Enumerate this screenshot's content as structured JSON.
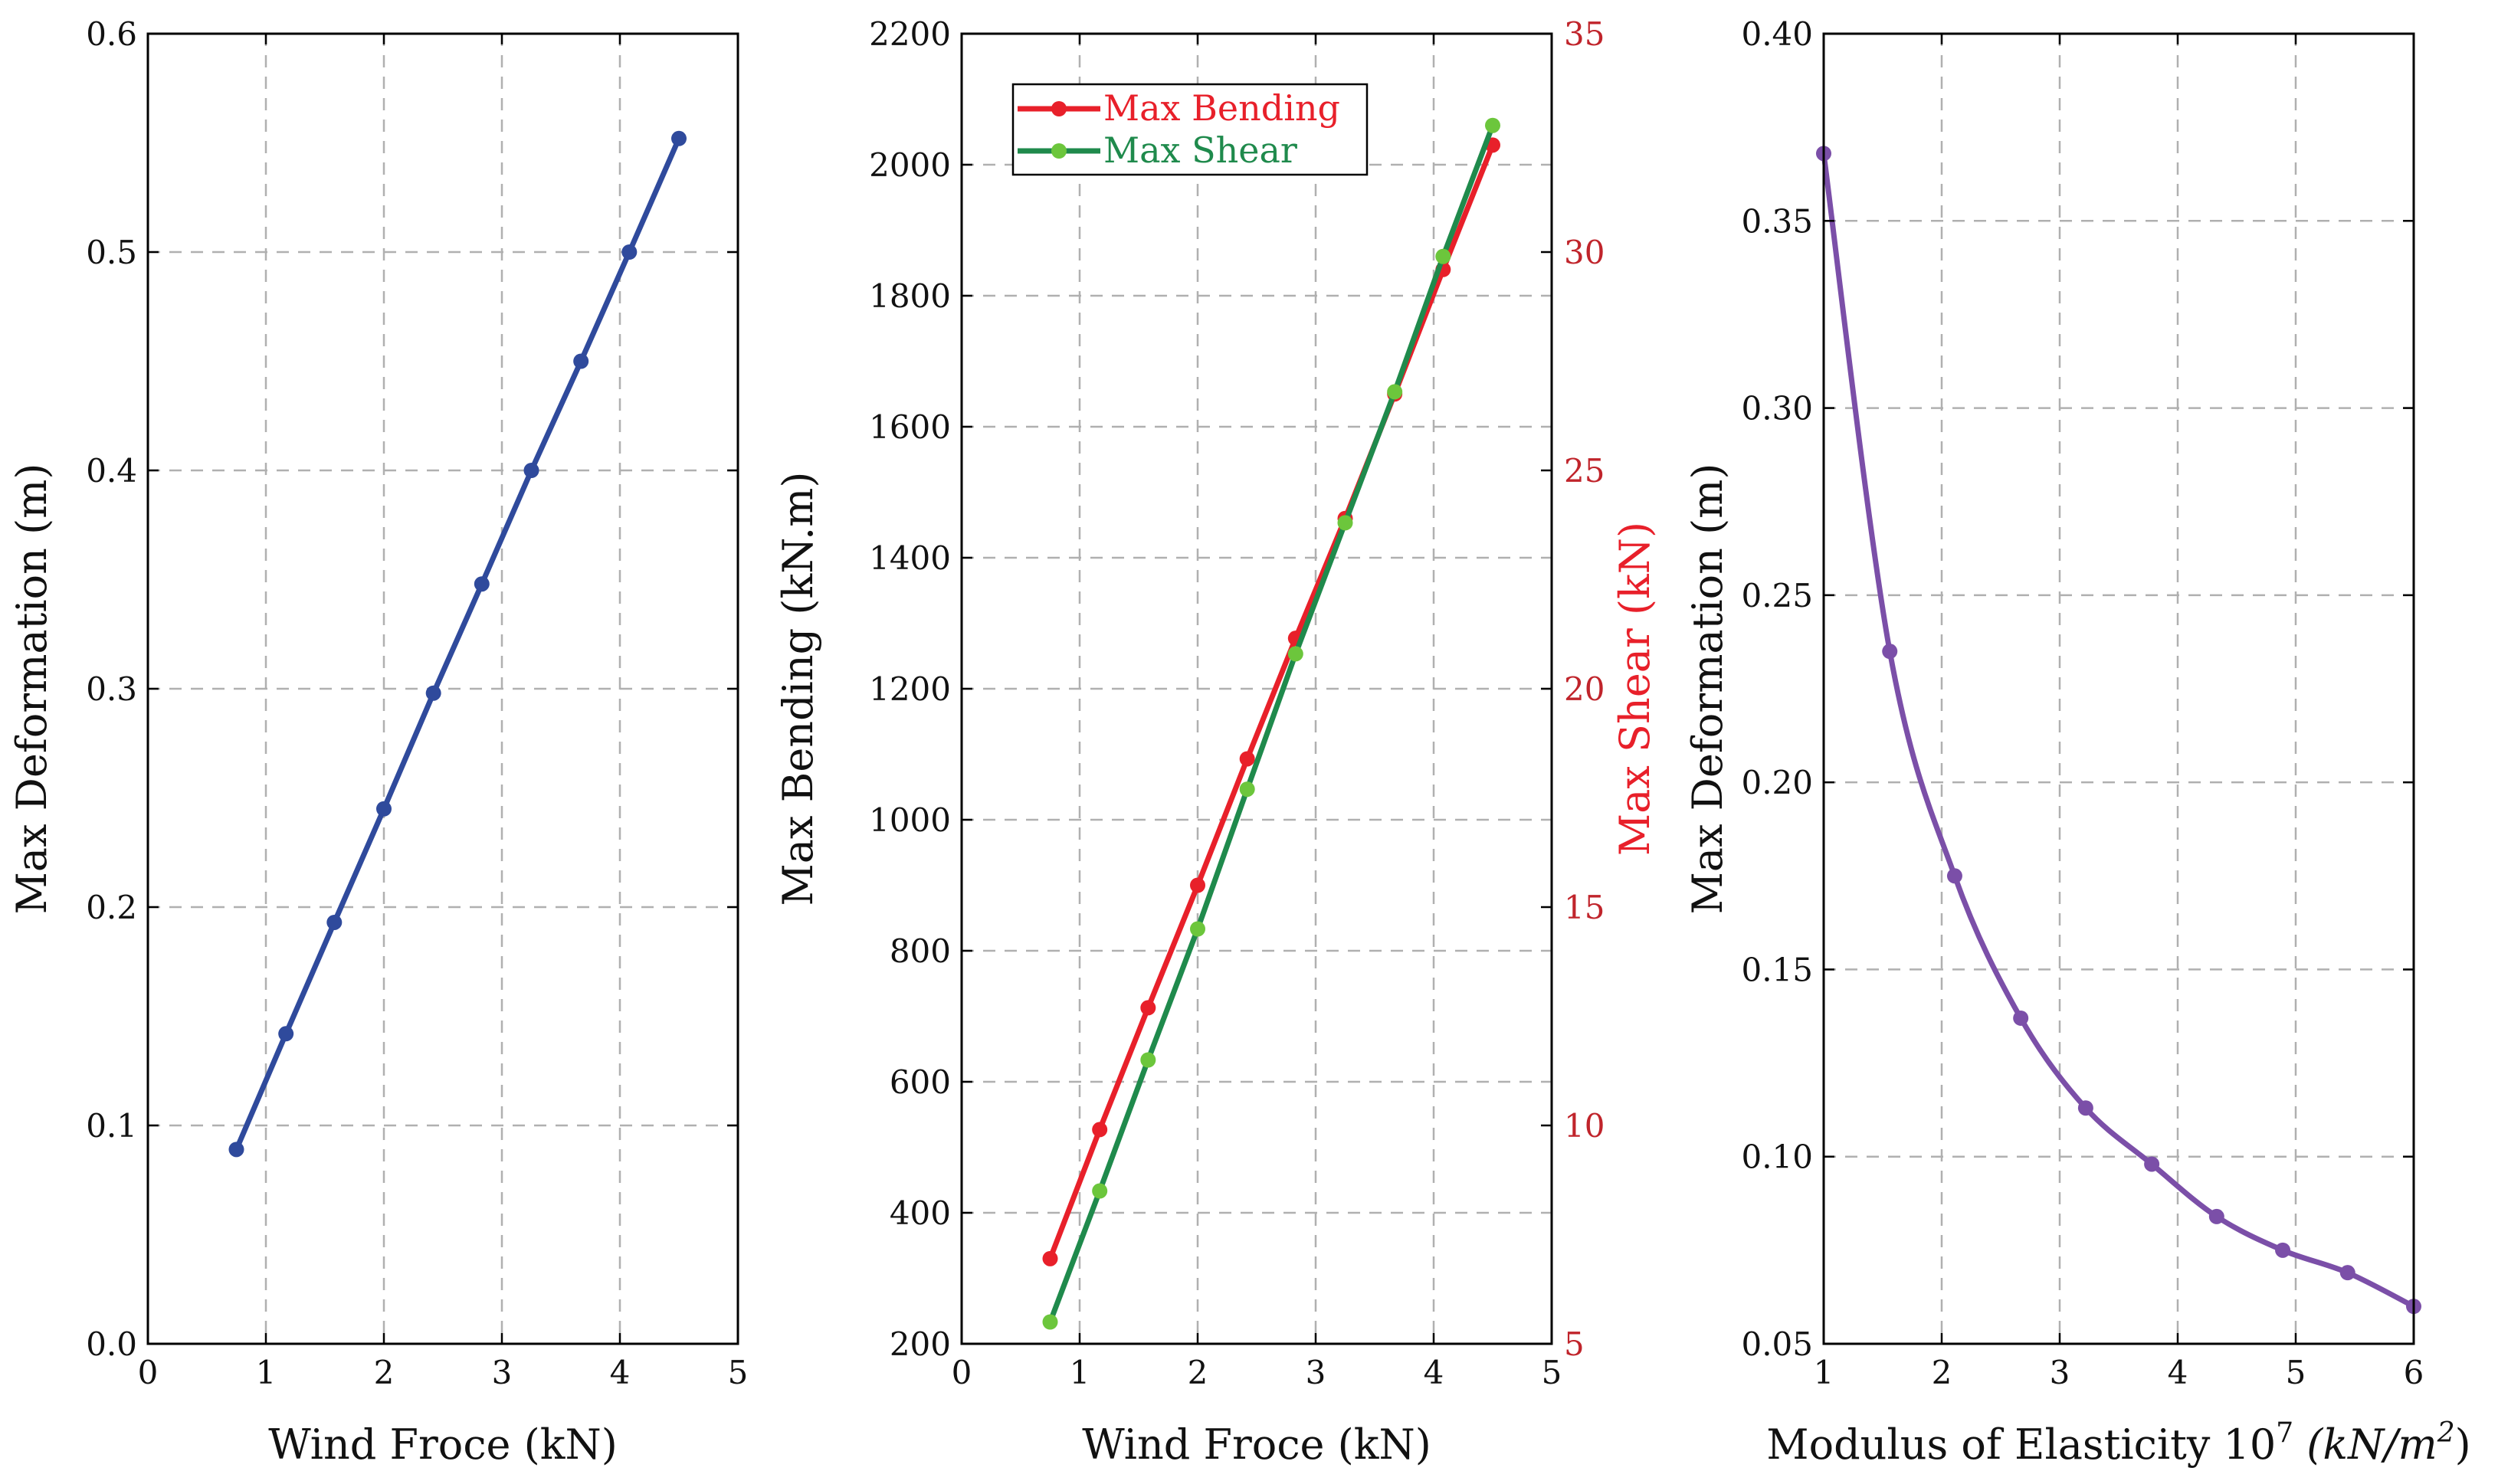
{
  "chart_data": [
    {
      "type": "line",
      "xlabel": "Wind Froce (kN)",
      "ylabel": "Max Deformation (m)",
      "xlim": [
        0,
        5
      ],
      "ylim": [
        0.0,
        0.6
      ],
      "xticks": [
        "0",
        "1",
        "2",
        "3",
        "4",
        "5"
      ],
      "yticks": [
        "0.0",
        "0.1",
        "0.2",
        "0.3",
        "0.4",
        "0.5",
        "0.6"
      ],
      "grid": true,
      "series": [
        {
          "name": "Max Deformation",
          "color": "#2f4a9c",
          "x": [
            0.75,
            1.17,
            1.58,
            2.0,
            2.42,
            2.83,
            3.25,
            3.67,
            4.08,
            4.5
          ],
          "y": [
            0.089,
            0.142,
            0.193,
            0.245,
            0.298,
            0.348,
            0.4,
            0.45,
            0.5,
            0.552
          ]
        }
      ]
    },
    {
      "type": "line",
      "xlabel": "Wind Froce (kN)",
      "ylabel": "Max Bending (kN.m)",
      "y2label": "Max Shear (kN)",
      "xlim": [
        0,
        5
      ],
      "ylim": [
        200,
        2200
      ],
      "y2lim": [
        5,
        35
      ],
      "xticks": [
        "0",
        "1",
        "2",
        "3",
        "4",
        "5"
      ],
      "yticks": [
        "200",
        "400",
        "600",
        "800",
        "1000",
        "1200",
        "1400",
        "1600",
        "1800",
        "2000",
        "2200"
      ],
      "y2ticks": [
        "5",
        "10",
        "15",
        "20",
        "25",
        "30",
        "35"
      ],
      "grid": true,
      "legend_position": "top-left",
      "series": [
        {
          "name": "Max Bending",
          "axis": "left",
          "color": "#e8202a",
          "x": [
            0.75,
            1.17,
            1.58,
            2.0,
            2.42,
            2.83,
            3.25,
            3.67,
            4.08,
            4.5
          ],
          "y": [
            330,
            527,
            713,
            900,
            1093,
            1277,
            1460,
            1650,
            1840,
            2030
          ]
        },
        {
          "name": "Max Shear",
          "axis": "right",
          "color": "#1f8a4c",
          "marker_color": "#6cc63c",
          "x": [
            0.75,
            1.17,
            1.58,
            2.0,
            2.42,
            2.83,
            3.25,
            3.67,
            4.08,
            4.5
          ],
          "y": [
            5.5,
            8.5,
            11.5,
            14.5,
            17.7,
            20.8,
            23.8,
            26.8,
            29.9,
            32.9
          ]
        }
      ]
    },
    {
      "type": "line",
      "xlabel_prefix": "Modulus of Elasticity 10",
      "xlabel_sup": "7",
      "xlabel_units_open": " (kN/m",
      "xlabel_units_sup": "2",
      "xlabel_units_close": ")",
      "ylabel": "Max Deformation (m)",
      "xlim": [
        1,
        6
      ],
      "ylim": [
        0.05,
        0.4
      ],
      "xticks": [
        "1",
        "2",
        "3",
        "4",
        "5",
        "6"
      ],
      "yticks": [
        "0.05",
        "0.10",
        "0.15",
        "0.20",
        "0.25",
        "0.30",
        "0.35",
        "0.40"
      ],
      "grid": true,
      "series": [
        {
          "name": "Max Deformation",
          "color": "#7b4fa8",
          "x": [
            1.0,
            1.56,
            2.11,
            2.67,
            3.22,
            3.78,
            4.33,
            4.89,
            5.44,
            6.0
          ],
          "y": [
            0.368,
            0.235,
            0.175,
            0.137,
            0.113,
            0.098,
            0.084,
            0.075,
            0.069,
            0.06
          ]
        }
      ]
    }
  ]
}
